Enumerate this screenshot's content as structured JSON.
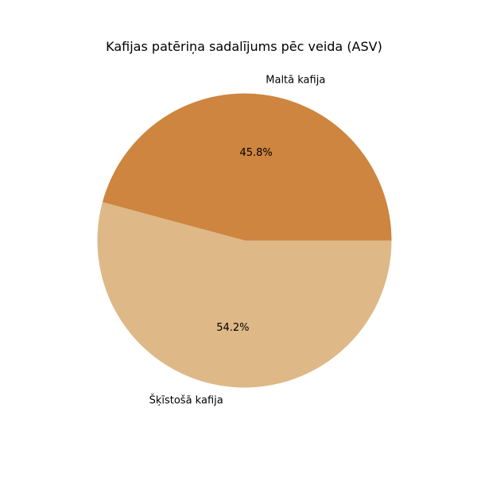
{
  "chart_data": {
    "type": "pie",
    "title": "Kafijas patēriņa sadalījums pēc veida (ASV)",
    "slices": [
      {
        "label": "Maltā kafija",
        "value": 45.8,
        "percent_label": "45.8%",
        "color": "#CD853F"
      },
      {
        "label": "Šķīstošā kafija",
        "value": 54.2,
        "percent_label": "54.2%",
        "color": "#DEB887"
      }
    ],
    "start_angle_deg": 0,
    "direction": "counterclockwise"
  }
}
